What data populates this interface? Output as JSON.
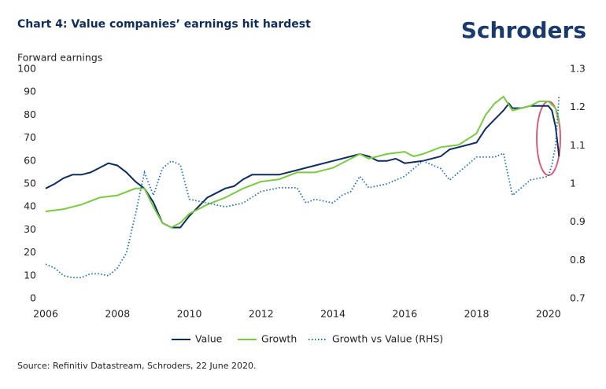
{
  "chart_data": {
    "type": "line",
    "title": "Chart 4: Value companies’ earnings hit hardest",
    "brand": "Schroders",
    "y_label": "Forward earnings",
    "source": "Source: Refinitiv Datastream, Schroders, 22 June 2020.",
    "xlim": [
      2006,
      2020.4
    ],
    "xticks": [
      2006,
      2008,
      2010,
      2012,
      2014,
      2016,
      2018,
      2020
    ],
    "ylim": [
      0,
      100
    ],
    "yticks": [
      0,
      10,
      20,
      30,
      40,
      50,
      60,
      70,
      80,
      90,
      100
    ],
    "y2lim": [
      0.7,
      1.3
    ],
    "y2ticks": [
      0.7,
      0.8,
      0.9,
      1.0,
      1.1,
      1.2,
      1.3
    ],
    "legend": "bottom",
    "series": [
      {
        "name": "Value",
        "color": "#0f2d5c",
        "style": "solid",
        "x": [
          2006.0,
          2006.25,
          2006.5,
          2006.75,
          2007.0,
          2007.25,
          2007.5,
          2007.75,
          2008.0,
          2008.25,
          2008.5,
          2008.75,
          2009.0,
          2009.25,
          2009.5,
          2009.75,
          2010.0,
          2010.25,
          2010.5,
          2010.75,
          2011.0,
          2011.25,
          2011.5,
          2011.75,
          2012.0,
          2012.5,
          2013.0,
          2013.5,
          2014.0,
          2014.5,
          2014.75,
          2015.0,
          2015.25,
          2015.5,
          2015.75,
          2016.0,
          2016.5,
          2017.0,
          2017.25,
          2017.5,
          2017.75,
          2018.0,
          2018.25,
          2018.5,
          2018.75,
          2018.9,
          2019.0,
          2019.25,
          2019.5,
          2019.75,
          2020.0,
          2020.1,
          2020.2,
          2020.3
        ],
        "values": [
          48,
          50,
          52.5,
          54,
          54,
          55,
          57,
          59,
          58,
          55,
          51,
          48,
          42,
          33,
          31,
          31,
          36,
          40,
          44,
          46,
          48,
          49,
          52,
          54,
          54,
          54,
          56,
          58,
          60,
          62,
          63,
          62,
          60,
          60,
          61,
          59,
          60,
          62,
          65,
          66,
          67,
          68,
          74,
          78,
          82,
          85,
          83,
          83,
          84,
          84,
          84,
          82,
          75,
          62
        ]
      },
      {
        "name": "Growth",
        "color": "#7ac943",
        "style": "solid",
        "x": [
          2006.0,
          2006.5,
          2007.0,
          2007.5,
          2008.0,
          2008.5,
          2008.75,
          2009.0,
          2009.25,
          2009.5,
          2009.75,
          2010.0,
          2010.5,
          2011.0,
          2011.5,
          2012.0,
          2012.5,
          2013.0,
          2013.5,
          2014.0,
          2014.5,
          2014.75,
          2015.0,
          2015.5,
          2016.0,
          2016.25,
          2016.5,
          2017.0,
          2017.5,
          2018.0,
          2018.25,
          2018.5,
          2018.75,
          2019.0,
          2019.5,
          2019.75,
          2020.0,
          2020.2,
          2020.3
        ],
        "values": [
          38,
          39,
          41,
          44,
          45,
          48,
          48,
          40,
          33,
          31,
          33,
          37,
          41,
          44,
          48,
          51,
          52,
          55,
          55,
          57,
          61,
          63,
          61,
          63,
          64,
          62,
          63,
          66,
          67,
          72,
          80,
          85,
          88,
          82,
          84,
          86,
          86,
          83,
          76
        ]
      },
      {
        "name": "Growth vs Value (RHS)",
        "color": "#1e6fb5",
        "style": "dotted",
        "axis": "y2",
        "x": [
          2006.0,
          2006.25,
          2006.5,
          2006.75,
          2007.0,
          2007.25,
          2007.5,
          2007.75,
          2008.0,
          2008.25,
          2008.5,
          2008.75,
          2009.0,
          2009.25,
          2009.5,
          2009.75,
          2010.0,
          2010.5,
          2011.0,
          2011.5,
          2012.0,
          2012.5,
          2013.0,
          2013.25,
          2013.5,
          2014.0,
          2014.25,
          2014.5,
          2014.75,
          2015.0,
          2015.5,
          2016.0,
          2016.5,
          2017.0,
          2017.25,
          2017.5,
          2018.0,
          2018.5,
          2018.75,
          2019.0,
          2019.5,
          2020.0,
          2020.1,
          2020.2,
          2020.3
        ],
        "values": [
          0.79,
          0.78,
          0.76,
          0.755,
          0.755,
          0.765,
          0.765,
          0.76,
          0.78,
          0.82,
          0.92,
          1.03,
          0.97,
          1.04,
          1.06,
          1.05,
          0.96,
          0.95,
          0.94,
          0.95,
          0.98,
          0.99,
          0.99,
          0.95,
          0.96,
          0.95,
          0.97,
          0.98,
          1.02,
          0.99,
          1.0,
          1.02,
          1.06,
          1.04,
          1.01,
          1.03,
          1.07,
          1.07,
          1.08,
          0.97,
          1.01,
          1.02,
          1.05,
          1.1,
          1.23
        ]
      }
    ]
  }
}
